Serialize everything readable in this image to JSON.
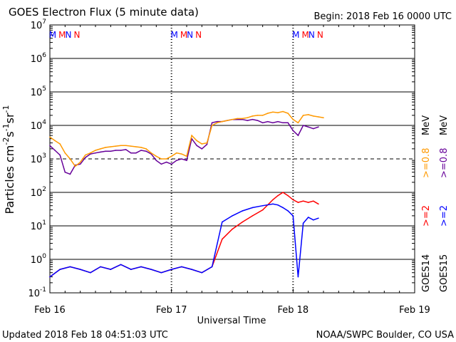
{
  "header": {
    "title": "GOES Electron Flux (5 minute data)",
    "begin": "Begin: 2018 Feb 16 0000 UTC"
  },
  "footer": {
    "updated": "Updated 2018 Feb 18 04:51:03 UTC",
    "credit": "NOAA/SWPC Boulder, CO USA"
  },
  "axes": {
    "xlabel": "Universal Time",
    "ylabel_parts": [
      "Particles cm",
      "-2",
      "s",
      "-1",
      "sr",
      "-1"
    ]
  },
  "legend": {
    "goes14": "GOES14",
    "goes15": "GOES15",
    "goes14_2": ">=2",
    "goes15_2": ">=2",
    "goes14_08": ">=0.8",
    "goes15_08": ">=0.8",
    "unit": "MeV"
  },
  "markers": {
    "m": "M",
    "n": "N",
    "positions_hours": [
      1.5,
      4.5,
      25.5,
      28.5,
      49.5,
      52.5
    ],
    "types": [
      "M",
      "N",
      "M",
      "N",
      "M",
      "N"
    ]
  },
  "colors": {
    "goes14_2": "#ff0000",
    "goes15_2": "#0000ff",
    "goes14_08": "#ff9900",
    "goes15_08": "#660099",
    "marker_m": "#0000ff",
    "marker_n": "#ff0000"
  },
  "chart_data": {
    "type": "line",
    "title": "GOES Electron Flux (5 minute data)",
    "xlabel": "Universal Time",
    "ylabel": "Particles cm-2 s-1 sr-1",
    "x_unit": "hours since 2018 Feb 16 0000 UTC",
    "xlim": [
      0,
      72
    ],
    "ylim": [
      0.1,
      10000000
    ],
    "y_scale": "log",
    "x_ticks": [
      "Feb 16",
      "Feb 17",
      "Feb 18",
      "Feb 19"
    ],
    "x_tick_hours": [
      0,
      24,
      48,
      72
    ],
    "y_ticks": [
      0.1,
      1,
      10,
      100,
      1000,
      10000,
      100000,
      1000000,
      10000000
    ],
    "y_tick_mant": [
      "10",
      "10",
      "10",
      "10",
      "10",
      "10",
      "10",
      "10",
      "10"
    ],
    "y_tick_exp": [
      "-1",
      "0",
      "1",
      "2",
      "3",
      "4",
      "5",
      "6",
      "7"
    ],
    "threshold_dashed": 1000,
    "day_boundary_hours": [
      24,
      48
    ],
    "series": [
      {
        "name": "GOES15 >=0.8 MeV",
        "color_key": "goes15_08",
        "x": [
          0,
          1,
          2,
          3,
          4,
          5,
          6,
          7,
          8,
          9,
          10,
          11,
          12,
          13,
          14,
          15,
          16,
          17,
          18,
          19,
          20,
          21,
          22,
          23,
          24,
          25,
          26,
          27,
          28,
          29,
          30,
          31,
          32,
          33,
          34,
          35,
          36,
          37,
          38,
          39,
          40,
          41,
          42,
          43,
          44,
          45,
          46,
          47,
          48,
          49,
          50,
          51,
          52,
          53
        ],
        "y": [
          2500,
          1800,
          1300,
          400,
          350,
          650,
          700,
          1100,
          1400,
          1500,
          1600,
          1700,
          1700,
          1800,
          1800,
          1900,
          1500,
          1500,
          1800,
          1700,
          1400,
          900,
          700,
          800,
          700,
          900,
          1000,
          900,
          4000,
          2500,
          2000,
          2700,
          12000,
          13000,
          13000,
          14000,
          15000,
          15000,
          15000,
          14000,
          15000,
          14000,
          12000,
          13000,
          12000,
          13000,
          12000,
          12000,
          7000,
          5000,
          10000,
          9000,
          8000,
          9000
        ]
      },
      {
        "name": "GOES14 >=0.8 MeV",
        "color_key": "goes14_08",
        "x": [
          0,
          1,
          2,
          3,
          4,
          5,
          6,
          7,
          8,
          9,
          10,
          11,
          12,
          13,
          14,
          15,
          16,
          17,
          18,
          19,
          20,
          21,
          22,
          23,
          24,
          25,
          26,
          27,
          28,
          29,
          30,
          31,
          32,
          33,
          34,
          35,
          36,
          37,
          38,
          39,
          40,
          41,
          42,
          43,
          44,
          45,
          46,
          47,
          48,
          49,
          50,
          51,
          52,
          53,
          54
        ],
        "y": [
          4500,
          3500,
          2800,
          1500,
          1000,
          600,
          800,
          1300,
          1500,
          1800,
          2000,
          2200,
          2300,
          2400,
          2500,
          2500,
          2400,
          2300,
          2200,
          2000,
          1500,
          1200,
          1000,
          1000,
          1200,
          1500,
          1400,
          1200,
          5000,
          3500,
          2800,
          3000,
          10000,
          12000,
          13000,
          14000,
          15000,
          16000,
          16000,
          17000,
          19000,
          20000,
          20000,
          23000,
          25000,
          24000,
          26000,
          23000,
          15000,
          12000,
          20000,
          21000,
          19000,
          18000,
          17000
        ]
      },
      {
        "name": "GOES14 >=2 MeV",
        "color_key": "goes14_2",
        "x": [
          0,
          2,
          4,
          6,
          8,
          10,
          12,
          14,
          16,
          18,
          20,
          22,
          24,
          26,
          28,
          30,
          32,
          34,
          36,
          38,
          40,
          42,
          44,
          45,
          46,
          47,
          48,
          49,
          50,
          51,
          52,
          53
        ],
        "y": [
          0.3,
          0.5,
          0.6,
          0.5,
          0.4,
          0.6,
          0.5,
          0.7,
          0.5,
          0.6,
          0.5,
          0.4,
          0.5,
          0.6,
          0.5,
          0.4,
          0.6,
          4,
          8,
          13,
          20,
          30,
          60,
          80,
          100,
          80,
          60,
          50,
          55,
          50,
          55,
          45
        ]
      },
      {
        "name": "GOES15 >=2 MeV",
        "color_key": "goes15_2",
        "x": [
          0,
          2,
          4,
          6,
          8,
          10,
          12,
          14,
          16,
          18,
          20,
          22,
          24,
          26,
          28,
          30,
          32,
          34,
          36,
          38,
          40,
          42,
          44,
          45,
          46,
          47,
          48,
          49,
          50,
          51,
          52,
          53
        ],
        "y": [
          0.3,
          0.5,
          0.6,
          0.5,
          0.4,
          0.6,
          0.5,
          0.7,
          0.5,
          0.6,
          0.5,
          0.4,
          0.5,
          0.6,
          0.5,
          0.4,
          0.6,
          13,
          20,
          28,
          35,
          40,
          45,
          42,
          35,
          28,
          20,
          0.3,
          12,
          18,
          15,
          17
        ]
      }
    ]
  }
}
